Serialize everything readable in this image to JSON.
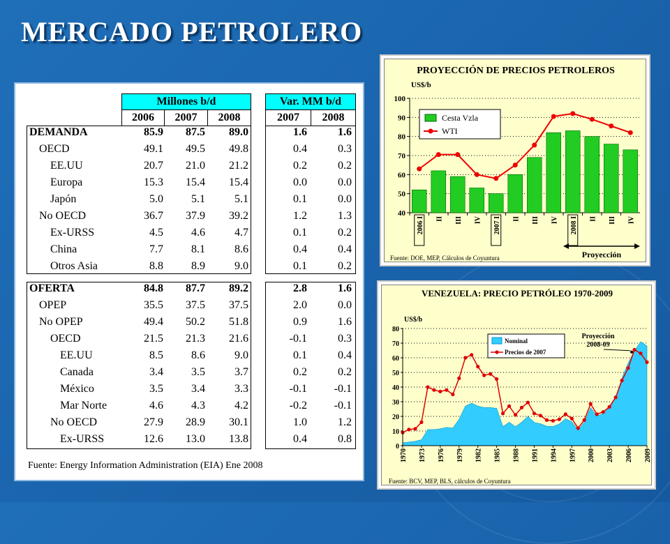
{
  "page_title": "MERCADO PETROLERO",
  "table": {
    "group1_header": "Millones b/d",
    "group2_header": "Var. MM b/d",
    "years1": [
      "2006",
      "2007",
      "2008"
    ],
    "years2": [
      "2007",
      "2008"
    ],
    "demand_rows": [
      {
        "label": "DEMANDA",
        "v": [
          "85.9",
          "87.5",
          "89.0"
        ],
        "d": [
          "1.6",
          "1.6"
        ],
        "bold": true
      },
      {
        "label": "OECD",
        "v": [
          "49.1",
          "49.5",
          "49.8"
        ],
        "d": [
          "0.4",
          "0.3"
        ],
        "bold": false
      },
      {
        "label": "EE.UU",
        "v": [
          "20.7",
          "21.0",
          "21.2"
        ],
        "d": [
          "0.2",
          "0.2"
        ],
        "bold": false
      },
      {
        "label": "Europa",
        "v": [
          "15.3",
          "15.4",
          "15.4"
        ],
        "d": [
          "0.0",
          "0.0"
        ],
        "bold": false
      },
      {
        "label": "Japón",
        "v": [
          "5.0",
          "5.1",
          "5.1"
        ],
        "d": [
          "0.1",
          "0.0"
        ],
        "bold": false
      },
      {
        "label": "No OECD",
        "v": [
          "36.7",
          "37.9",
          "39.2"
        ],
        "d": [
          "1.2",
          "1.3"
        ],
        "bold": false
      },
      {
        "label": "Ex-URSS",
        "v": [
          "4.5",
          "4.6",
          "4.7"
        ],
        "d": [
          "0.1",
          "0.2"
        ],
        "bold": false
      },
      {
        "label": "China",
        "v": [
          "7.7",
          "8.1",
          "8.6"
        ],
        "d": [
          "0.4",
          "0.4"
        ],
        "bold": false
      },
      {
        "label": "Otros Asia",
        "v": [
          "8.8",
          "8.9",
          "9.0"
        ],
        "d": [
          "0.1",
          "0.2"
        ],
        "bold": false
      }
    ],
    "supply_rows": [
      {
        "label": "OFERTA",
        "v": [
          "84.8",
          "87.7",
          "89.2"
        ],
        "d": [
          "2.8",
          "1.6"
        ],
        "bold": true
      },
      {
        "label": "OPEP",
        "v": [
          "35.5",
          "37.5",
          "37.5"
        ],
        "d": [
          "2.0",
          "0.0"
        ],
        "bold": false
      },
      {
        "label": "No OPEP",
        "v": [
          "49.4",
          "50.2",
          "51.8"
        ],
        "d": [
          "0.9",
          "1.6"
        ],
        "bold": false
      },
      {
        "label": "OECD",
        "v": [
          "21.5",
          "21.3",
          "21.6"
        ],
        "d": [
          "-0.1",
          "0.3"
        ],
        "bold": false
      },
      {
        "label": "EE.UU",
        "v": [
          "8.5",
          "8.6",
          "9.0"
        ],
        "d": [
          "0.1",
          "0.4"
        ],
        "bold": false
      },
      {
        "label": "Canada",
        "v": [
          "3.4",
          "3.5",
          "3.7"
        ],
        "d": [
          "0.2",
          "0.2"
        ],
        "bold": false
      },
      {
        "label": "México",
        "v": [
          "3.5",
          "3.4",
          "3.3"
        ],
        "d": [
          "-0.1",
          "-0.1"
        ],
        "bold": false
      },
      {
        "label": "Mar Norte",
        "v": [
          "4.6",
          "4.3",
          "4.2"
        ],
        "d": [
          "-0.2",
          "-0.1"
        ],
        "bold": false
      },
      {
        "label": "No OECD",
        "v": [
          "27.9",
          "28.9",
          "30.1"
        ],
        "d": [
          "1.0",
          "1.2"
        ],
        "bold": false
      },
      {
        "label": "Ex-URSS",
        "v": [
          "12.6",
          "13.0",
          "13.8"
        ],
        "d": [
          "0.4",
          "0.8"
        ],
        "bold": false
      }
    ],
    "source": "Fuente: Energy Information Administration (EIA) Ene 2008"
  },
  "chart_data": [
    {
      "type": "bar",
      "title": "PROYECCIÓN DE PRECIOS PETROLEROS",
      "ylabel": "US$/b",
      "ylim": [
        40,
        100
      ],
      "yticks": [
        40,
        50,
        60,
        70,
        80,
        90,
        100
      ],
      "categories": [
        "2006 I",
        "II",
        "III",
        "IV",
        "2007 I",
        "II",
        "III",
        "IV",
        "2008 I",
        "II",
        "III",
        "IV"
      ],
      "series": [
        {
          "name": "Cesta Vzla",
          "type": "bar",
          "color": "#22cc22",
          "values": [
            52,
            62,
            59,
            53,
            50,
            60,
            69,
            82,
            83,
            80,
            76,
            73
          ]
        },
        {
          "name": "WTI",
          "type": "line",
          "color": "#ee0000",
          "values": [
            63,
            70.5,
            70.5,
            60,
            58,
            65,
            75.5,
            90.5,
            92,
            89,
            85.5,
            82
          ]
        }
      ],
      "projection_label": "Proyección",
      "source": "Fuente: DOE, MEP, Cálculos de Coyuntura",
      "grid": "dotted horizontal",
      "legend": "top-left"
    },
    {
      "type": "area",
      "title": "VENEZUELA: PRECIO PETRÓLEO 1970-2009",
      "ylabel": "US$/b",
      "ylim": [
        0,
        80
      ],
      "yticks": [
        0,
        10,
        20,
        30,
        40,
        50,
        60,
        70,
        80
      ],
      "x": [
        1970,
        1971,
        1972,
        1973,
        1974,
        1975,
        1976,
        1977,
        1978,
        1979,
        1980,
        1981,
        1982,
        1983,
        1984,
        1985,
        1986,
        1987,
        1988,
        1989,
        1990,
        1991,
        1992,
        1993,
        1994,
        1995,
        1996,
        1997,
        1998,
        1999,
        2000,
        2001,
        2002,
        2003,
        2004,
        2005,
        2006,
        2007,
        2008,
        2009
      ],
      "xtick_labels": [
        "1970",
        "1973",
        "1976",
        "1979",
        "1982",
        "1985",
        "1988",
        "1991",
        "1994",
        "1997",
        "2000",
        "2003",
        "2006",
        "2009"
      ],
      "series": [
        {
          "name": "Nominal",
          "type": "area",
          "color": "#33ccff",
          "values": [
            2,
            2.5,
            3,
            4,
            11,
            11,
            11.5,
            12.5,
            12,
            18,
            27,
            29,
            27,
            26,
            26,
            25.5,
            13,
            16,
            13,
            16,
            20,
            15.9,
            14.9,
            13.3,
            13.1,
            14.8,
            18.4,
            16.3,
            10.6,
            16,
            25.9,
            20.2,
            21.9,
            25.8,
            32.9,
            46,
            56.4,
            64.7,
            71,
            68
          ]
        },
        {
          "name": "Precios de 2007",
          "type": "line",
          "color": "#dd0000",
          "values": [
            9,
            11,
            11.5,
            16,
            40,
            38,
            37,
            38,
            35,
            46,
            60,
            62,
            54,
            48,
            49,
            45.5,
            22,
            27,
            21,
            26,
            29.5,
            22,
            20.5,
            17.5,
            17,
            18,
            21.5,
            18.5,
            12,
            17.5,
            28.5,
            21.5,
            23,
            26.5,
            33,
            44.5,
            53,
            65.5,
            63,
            57
          ]
        }
      ],
      "annotation": "Proyección 2008-09",
      "source": "Fuente: BCV, MEP, BLS, cálculos de Coyuntura",
      "grid": "dotted horizontal",
      "legend": "top-left"
    }
  ]
}
